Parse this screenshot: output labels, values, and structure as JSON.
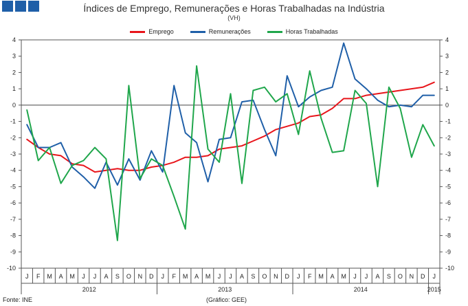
{
  "title": "Índices de Emprego, Remunerações e Horas Trabalhadas na Indústria",
  "subtitle": "(VH)",
  "source": "Fonte: INE",
  "credit": "(Gráfico: GEE)",
  "icons": [
    "logo-square-icon",
    "logo-square-icon",
    "logo-square-icon"
  ],
  "chart_data": {
    "type": "line",
    "x": [
      "J",
      "F",
      "M",
      "A",
      "M",
      "J",
      "J",
      "A",
      "S",
      "O",
      "N",
      "D",
      "J",
      "F",
      "M",
      "A",
      "M",
      "J",
      "J",
      "A",
      "S",
      "O",
      "N",
      "D",
      "J",
      "F",
      "M",
      "A",
      "M",
      "J",
      "J",
      "A",
      "S",
      "O",
      "N",
      "D",
      "J"
    ],
    "x_groups": [
      {
        "label": "2012",
        "start": 0,
        "end": 11
      },
      {
        "label": "2013",
        "start": 12,
        "end": 23
      },
      {
        "label": "2014",
        "start": 24,
        "end": 35
      },
      {
        "label": "2015",
        "start": 36,
        "end": 36
      }
    ],
    "ylim": [
      -10,
      4
    ],
    "yticks": [
      4,
      3,
      2,
      1,
      0,
      -1,
      -2,
      -3,
      -4,
      -5,
      -6,
      -7,
      -8,
      -9,
      -10
    ],
    "grid": false,
    "legend": "top",
    "series": [
      {
        "name": "Emprego",
        "color": "#e8151b",
        "values": [
          -2.1,
          -2.6,
          -3.0,
          -3.1,
          -3.6,
          -3.7,
          -4.1,
          -4.0,
          -3.9,
          -4.0,
          -4.0,
          -3.8,
          -3.7,
          -3.5,
          -3.2,
          -3.2,
          -3.1,
          -2.7,
          -2.6,
          -2.5,
          -2.2,
          -1.9,
          -1.5,
          -1.3,
          -1.1,
          -0.7,
          -0.6,
          -0.2,
          0.4,
          0.4,
          0.6,
          0.7,
          0.8,
          0.9,
          1.0,
          1.1,
          1.4
        ]
      },
      {
        "name": "Remunerações",
        "color": "#1f5fa8",
        "values": [
          -1.2,
          -2.6,
          -2.6,
          -2.3,
          -3.8,
          -4.4,
          -5.1,
          -3.5,
          -4.9,
          -3.3,
          -4.6,
          -2.8,
          -4.1,
          1.2,
          -1.7,
          -2.3,
          -4.7,
          -2.1,
          -2.0,
          0.2,
          0.3,
          -1.5,
          -3.1,
          1.8,
          -0.1,
          0.5,
          0.9,
          1.1,
          3.8,
          1.6,
          1.0,
          0.3,
          -0.1,
          0.0,
          -0.1,
          0.6,
          0.6
        ]
      },
      {
        "name": "Horas Trabalhadas",
        "color": "#1fa64b",
        "values": [
          -0.3,
          -3.4,
          -2.6,
          -4.8,
          -3.7,
          -3.4,
          -2.6,
          -3.3,
          -8.3,
          1.2,
          -4.5,
          -3.3,
          -3.7,
          -5.6,
          -7.6,
          2.4,
          -2.7,
          -3.5,
          0.7,
          -4.8,
          0.9,
          1.1,
          0.2,
          0.7,
          -1.8,
          2.1,
          -0.8,
          -2.9,
          -2.8,
          0.9,
          0.1,
          -5.0,
          1.1,
          -0.2,
          -3.2,
          -1.2,
          -2.5
        ]
      }
    ]
  }
}
